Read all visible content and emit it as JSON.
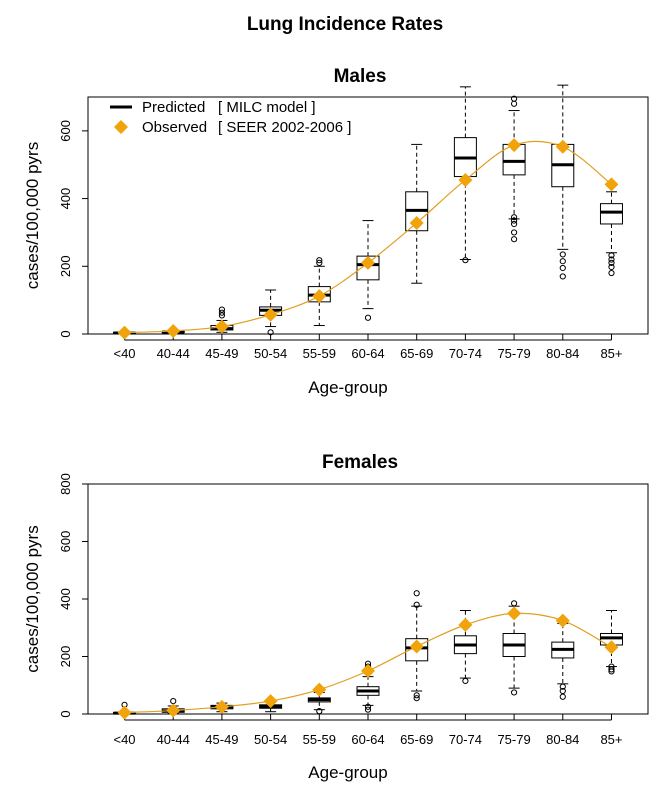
{
  "title": "Lung Incidence Rates",
  "colors": {
    "observed": "#F0A30A",
    "box": "#000000",
    "line": "#E0A020"
  },
  "chart_data": [
    {
      "type": "boxplot",
      "title": "Males",
      "xlabel": "Age-group",
      "ylabel": "cases/100,000 pyrs",
      "ylim": [
        0,
        700
      ],
      "yticks": [
        0,
        200,
        400,
        600
      ],
      "categories": [
        "<40",
        "40-44",
        "45-49",
        "50-54",
        "55-59",
        "60-64",
        "65-69",
        "70-74",
        "75-79",
        "80-84",
        "85+"
      ],
      "legend": {
        "position": "top-left",
        "entries": [
          {
            "symbol": "line",
            "label": "Predicted",
            "note": "[ MILC model ]"
          },
          {
            "symbol": "diamond",
            "label": "Observed",
            "note": "[ SEER 2002-2006 ]"
          }
        ]
      },
      "series": [
        {
          "name": "Predicted",
          "boxes": [
            {
              "min": 0,
              "q1": 2,
              "median": 3,
              "q3": 5,
              "max": 7,
              "outliers": []
            },
            {
              "min": 2,
              "q1": 4,
              "median": 6,
              "q3": 8,
              "max": 11,
              "outliers": []
            },
            {
              "min": 5,
              "q1": 12,
              "median": 16,
              "q3": 25,
              "max": 40,
              "outliers": [
                55,
                63,
                72
              ]
            },
            {
              "min": 22,
              "q1": 55,
              "median": 70,
              "q3": 80,
              "max": 130,
              "outliers": [
                5
              ]
            },
            {
              "min": 25,
              "q1": 95,
              "median": 115,
              "q3": 140,
              "max": 200,
              "outliers": [
                210,
                218
              ]
            },
            {
              "min": 75,
              "q1": 160,
              "median": 205,
              "q3": 230,
              "max": 335,
              "outliers": [
                48
              ]
            },
            {
              "min": 150,
              "q1": 305,
              "median": 365,
              "q3": 420,
              "max": 560,
              "outliers": []
            },
            {
              "min": 220,
              "q1": 465,
              "median": 520,
              "q3": 580,
              "max": 730,
              "outliers": [
                218
              ]
            },
            {
              "min": 340,
              "q1": 470,
              "median": 510,
              "q3": 560,
              "max": 660,
              "outliers": [
                280,
                300,
                325,
                335,
                345,
                680,
                695
              ]
            },
            {
              "min": 250,
              "q1": 435,
              "median": 500,
              "q3": 560,
              "max": 735,
              "outliers": [
                170,
                195,
                215,
                235
              ]
            },
            {
              "min": 240,
              "q1": 325,
              "median": 360,
              "q3": 385,
              "max": 420,
              "outliers": [
                180,
                198,
                210,
                220,
                232
              ]
            }
          ]
        },
        {
          "name": "Observed",
          "values": [
            4,
            9,
            22,
            57,
            112,
            210,
            328,
            455,
            558,
            553,
            442
          ]
        }
      ]
    },
    {
      "type": "boxplot",
      "title": "Females",
      "xlabel": "Age-group",
      "ylabel": "cases/100,000 pyrs",
      "ylim": [
        0,
        800
      ],
      "yticks": [
        0,
        200,
        400,
        600,
        800
      ],
      "categories": [
        "<40",
        "40-44",
        "45-49",
        "50-54",
        "55-59",
        "60-64",
        "65-69",
        "70-74",
        "75-79",
        "80-84",
        "85+"
      ],
      "series": [
        {
          "name": "Predicted",
          "boxes": [
            {
              "min": 0,
              "q1": 1,
              "median": 3,
              "q3": 5,
              "max": 8,
              "outliers": [
                32
              ]
            },
            {
              "min": 2,
              "q1": 6,
              "median": 10,
              "q3": 18,
              "max": 28,
              "outliers": [
                45
              ]
            },
            {
              "min": 8,
              "q1": 18,
              "median": 25,
              "q3": 30,
              "max": 38,
              "outliers": []
            },
            {
              "min": 8,
              "q1": 20,
              "median": 26,
              "q3": 32,
              "max": 42,
              "outliers": []
            },
            {
              "min": 15,
              "q1": 42,
              "median": 50,
              "q3": 56,
              "max": 75,
              "outliers": [
                10
              ]
            },
            {
              "min": 30,
              "q1": 65,
              "median": 80,
              "q3": 95,
              "max": 130,
              "outliers": [
                15,
                25,
                155,
                165,
                175
              ]
            },
            {
              "min": 80,
              "q1": 185,
              "median": 230,
              "q3": 262,
              "max": 375,
              "outliers": [
                55,
                65,
                380,
                420
              ]
            },
            {
              "min": 125,
              "q1": 210,
              "median": 240,
              "q3": 272,
              "max": 360,
              "outliers": [
                115
              ]
            },
            {
              "min": 90,
              "q1": 200,
              "median": 240,
              "q3": 280,
              "max": 375,
              "outliers": [
                75,
                385
              ]
            },
            {
              "min": 105,
              "q1": 195,
              "median": 225,
              "q3": 250,
              "max": 315,
              "outliers": [
                60,
                80,
                95
              ]
            },
            {
              "min": 165,
              "q1": 240,
              "median": 265,
              "q3": 280,
              "max": 360,
              "outliers": [
                148,
                155,
                165
              ]
            }
          ]
        },
        {
          "name": "Observed",
          "values": [
            5,
            12,
            25,
            45,
            85,
            150,
            235,
            310,
            350,
            325,
            232
          ]
        }
      ]
    }
  ]
}
